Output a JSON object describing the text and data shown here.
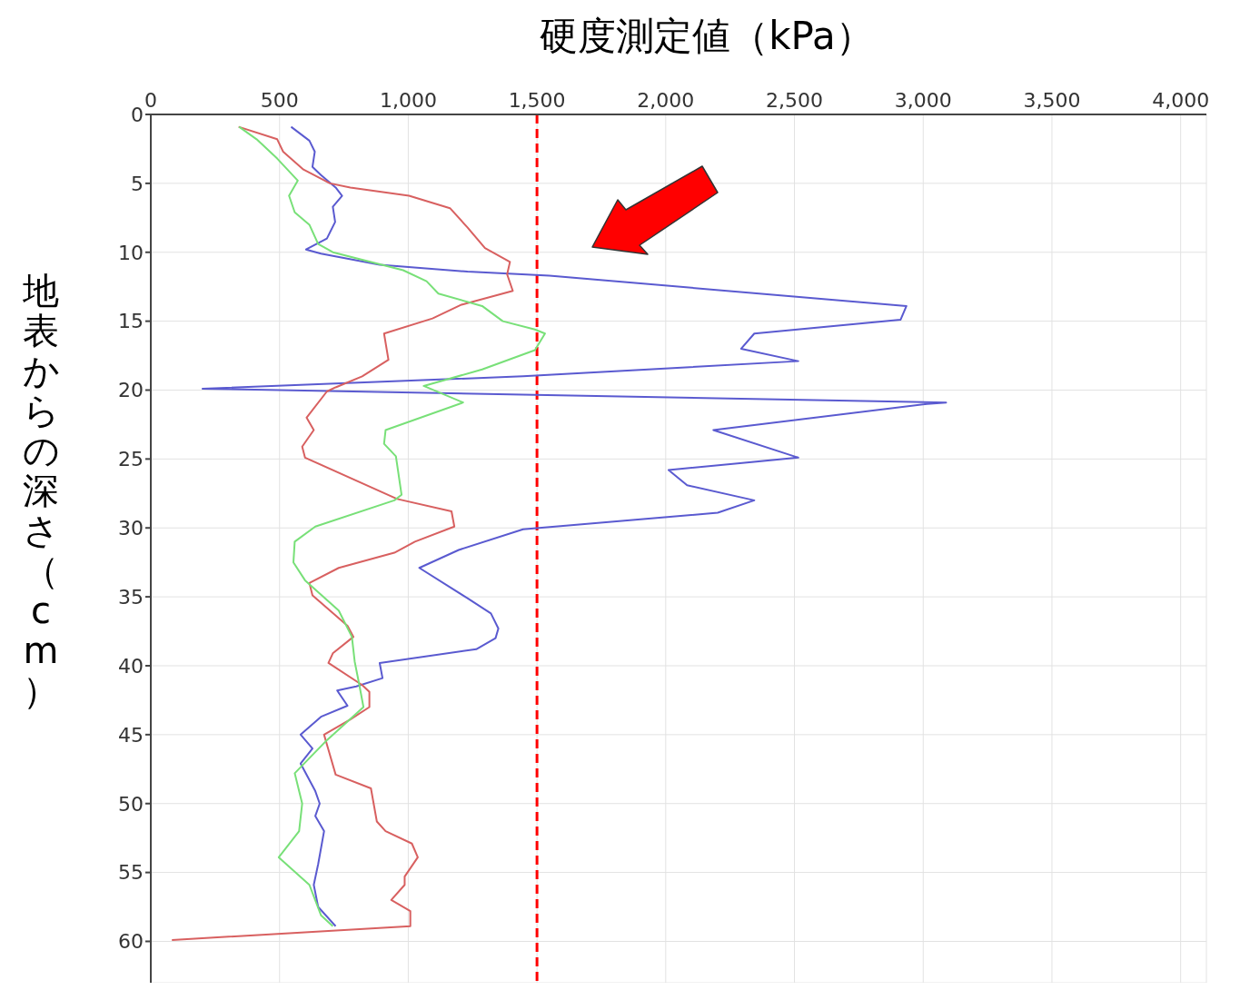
{
  "chart_data": {
    "type": "line",
    "orientation": "horizontal",
    "xlabel": "硬度測定値（kPa）",
    "ylabel": "地表からの深さ（cm）",
    "xlim": [
      0,
      4100
    ],
    "xticks": [
      0,
      500,
      {
        "value": 1000,
        "label": "1,000"
      },
      {
        "value": 1500,
        "label": "1,500"
      },
      {
        "value": 2000,
        "label": "2,000"
      },
      {
        "value": 2500,
        "label": "2,500"
      },
      {
        "value": 3000,
        "label": "3,000"
      },
      {
        "value": 3500,
        "label": "3,500"
      },
      {
        "value": 4000,
        "label": "4,000"
      }
    ],
    "ylim": [
      63,
      0
    ],
    "yticks": [
      0,
      5,
      10,
      15,
      20,
      25,
      30,
      35,
      40,
      45,
      50,
      55,
      60
    ],
    "grid": true,
    "ref_lines": [
      {
        "axis": "x",
        "value": 1500,
        "color": "#ff0000",
        "line_style": "dashed"
      }
    ],
    "series": [
      {
        "color": "#5a5ad0",
        "x": [
          0.9,
          1.9,
          2.7,
          3.8,
          4.4,
          5.3,
          5.9,
          6.7,
          7.8,
          9.0,
          9.8,
          10.1,
          10.9,
          11.4,
          11.7,
          13.9,
          14.9,
          15.9,
          17.0,
          17.9,
          19.0,
          19.9,
          20.9,
          21.0,
          22.9,
          24.9,
          25.8,
          26.9,
          28.0,
          28.9,
          30.1,
          31.6,
          32.9,
          35.1,
          36.2,
          37.3,
          38.0,
          38.8,
          39.8,
          40.9,
          41.5,
          41.8,
          42.9,
          43.7,
          45.0,
          46.0,
          47.1,
          49.1,
          50.0,
          50.9,
          52.0,
          54.4,
          55.9,
          57.5,
          58.9
        ],
        "values": [
          545,
          616,
          637,
          628,
          661,
          718,
          743,
          707,
          716,
          684,
          603,
          661,
          889,
          1230,
          1548,
          2935,
          2912,
          2344,
          2293,
          2515,
          1446,
          201,
          3089,
          3015,
          2185,
          2515,
          2011,
          2083,
          2344,
          2202,
          1446,
          1196,
          1043,
          1230,
          1321,
          1350,
          1339,
          1264,
          889,
          900,
          798,
          724,
          764,
          661,
          582,
          628,
          582,
          639,
          656,
          639,
          673,
          650,
          633,
          650,
          718
        ]
      },
      {
        "color": "#d86060",
        "x": [
          0.9,
          1.8,
          2.7,
          4.0,
          5.0,
          5.3,
          5.9,
          6.8,
          8.2,
          9.7,
          10.7,
          11.6,
          12.8,
          13.8,
          14.8,
          15.9,
          17.8,
          19.0,
          19.8,
          20.1,
          22.0,
          22.9,
          24.1,
          24.9,
          27.9,
          28.8,
          29.9,
          31.0,
          31.8,
          32.9,
          34.0,
          34.9,
          37.1,
          37.9,
          39.1,
          39.8,
          41.4,
          41.9,
          43.0,
          43.9,
          45.0,
          46.1,
          47.9,
          48.9,
          51.3,
          52.0,
          52.9,
          53.9,
          55.3,
          55.9,
          57.0,
          57.8,
          58.9,
          59.9
        ],
        "values": [
          341,
          491,
          514,
          593,
          696,
          775,
          1003,
          1162,
          1230,
          1298,
          1395,
          1384,
          1406,
          1207,
          1094,
          906,
          923,
          821,
          718,
          684,
          605,
          633,
          588,
          599,
          957,
          1168,
          1179,
          1026,
          946,
          730,
          616,
          628,
          764,
          787,
          707,
          690,
          821,
          849,
          849,
          775,
          673,
          690,
          718,
          855,
          878,
          912,
          1014,
          1037,
          986,
          986,
          934,
          1008,
          1008,
          82
        ]
      },
      {
        "color": "#78e078",
        "x": [
          0.9,
          1.8,
          3.2,
          4.8,
          5.9,
          7.1,
          8.0,
          9.4,
          10.0,
          11.3,
          12.1,
          13.0,
          13.9,
          15.0,
          15.6,
          15.9,
          17.1,
          18.5,
          19.7,
          20.9,
          22.9,
          23.9,
          24.8,
          27.6,
          28.0,
          29.9,
          31.0,
          32.5,
          33.8,
          36.0,
          37.9,
          39.7,
          41.3,
          43.0,
          45.4,
          47.8,
          50.0,
          52.0,
          53.9,
          55.9,
          58.1,
          58.9
        ],
        "values": [
          343,
          411,
          491,
          571,
          537,
          559,
          616,
          650,
          707,
          980,
          1071,
          1117,
          1287,
          1367,
          1492,
          1531,
          1492,
          1287,
          1060,
          1213,
          912,
          906,
          952,
          974,
          946,
          639,
          559,
          554,
          599,
          730,
          781,
          792,
          809,
          826,
          684,
          559,
          588,
          576,
          497,
          616,
          661,
          707
        ]
      }
    ]
  }
}
